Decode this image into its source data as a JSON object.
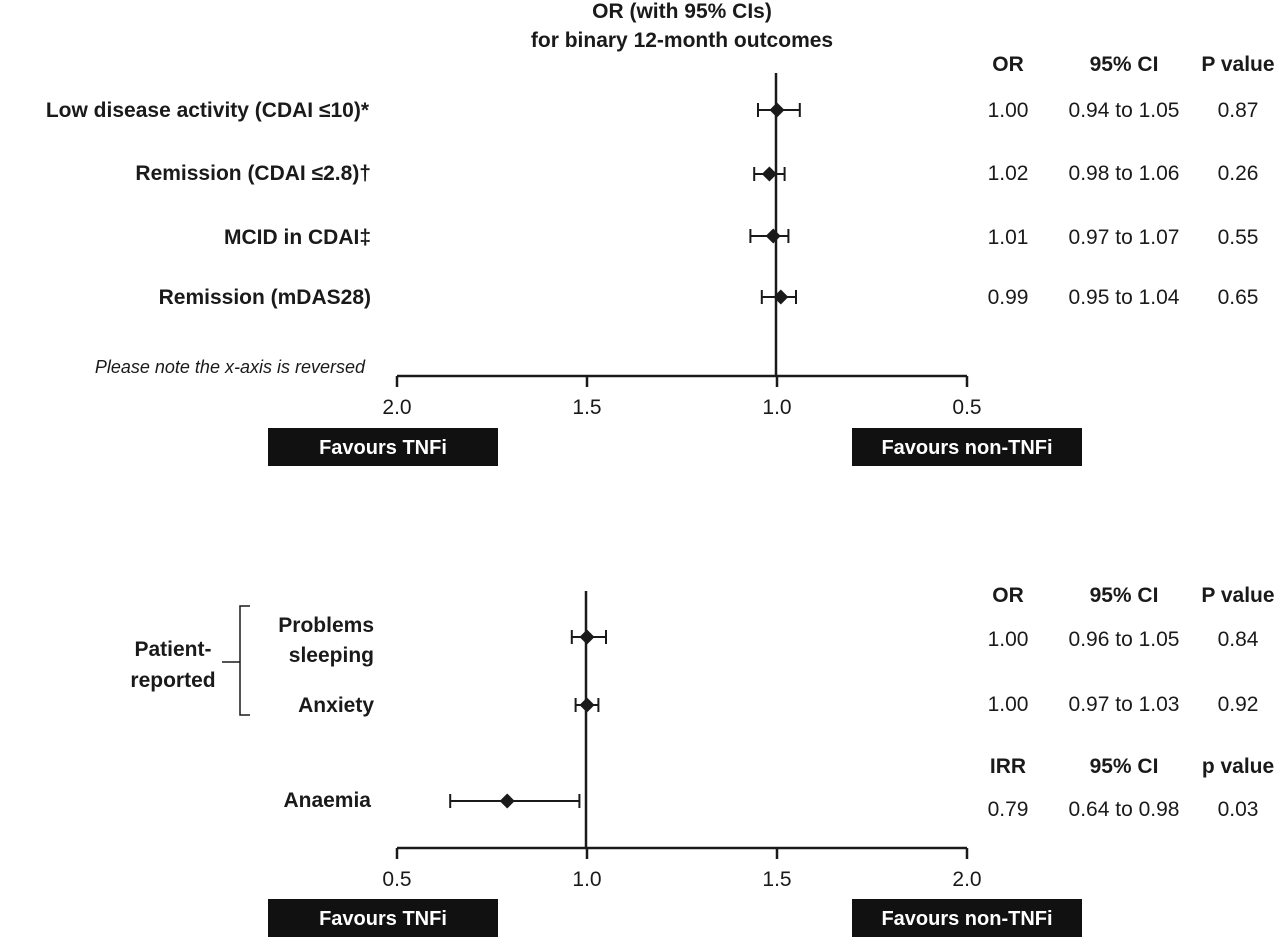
{
  "title_line1": "OR (with 95% CIs)",
  "title_line2": "for binary 12-month outcomes",
  "note": "Please note the x-axis is reversed",
  "chart_data": [
    {
      "type": "forest",
      "x_reversed": true,
      "xlim": [
        0.5,
        2.0
      ],
      "xticks": [
        "2.0",
        "1.5",
        "1.0",
        "0.5"
      ],
      "headers": [
        "OR",
        "95% CI",
        "P value"
      ],
      "rows": [
        {
          "label": "Low disease activity (CDAI ≤10)*",
          "est": 1.0,
          "lo": 0.94,
          "hi": 1.05,
          "est_text": "1.00",
          "ci_text": "0.94 to 1.05",
          "p_text": "0.87"
        },
        {
          "label": "Remission (CDAI ≤2.8)†",
          "est": 1.02,
          "lo": 0.98,
          "hi": 1.06,
          "est_text": "1.02",
          "ci_text": "0.98 to 1.06",
          "p_text": "0.26"
        },
        {
          "label": "MCID in CDAI‡",
          "est": 1.01,
          "lo": 0.97,
          "hi": 1.07,
          "est_text": "1.01",
          "ci_text": "0.97 to 1.07",
          "p_text": "0.55"
        },
        {
          "label": "Remission (mDAS28)",
          "est": 0.99,
          "lo": 0.95,
          "hi": 1.04,
          "est_text": "0.99",
          "ci_text": "0.95 to 1.04",
          "p_text": "0.65"
        }
      ],
      "favours_left": "Favours TNFi",
      "favours_right": "Favours non-TNFi"
    },
    {
      "type": "forest",
      "x_reversed": false,
      "xlim": [
        0.5,
        2.0
      ],
      "xticks": [
        "0.5",
        "1.0",
        "1.5",
        "2.0"
      ],
      "group_label": [
        "Patient-",
        "reported"
      ],
      "headers": [
        "OR",
        "95% CI",
        "P value"
      ],
      "headers2": [
        "IRR",
        "95% CI",
        "p value"
      ],
      "rows": [
        {
          "label": [
            "Problems",
            "sleeping"
          ],
          "est": 1.0,
          "lo": 0.96,
          "hi": 1.05,
          "est_text": "1.00",
          "ci_text": "0.96 to 1.05",
          "p_text": "0.84"
        },
        {
          "label": [
            "Anxiety"
          ],
          "est": 1.0,
          "lo": 0.97,
          "hi": 1.03,
          "est_text": "1.00",
          "ci_text": "0.97 to 1.03",
          "p_text": "0.92"
        },
        {
          "label": [
            "Anaemia"
          ],
          "est": 0.79,
          "lo": 0.64,
          "hi": 0.98,
          "est_text": "0.79",
          "ci_text": "0.64 to 0.98",
          "p_text": "0.03"
        }
      ],
      "favours_left": "Favours TNFi",
      "favours_right": "Favours non-TNFi"
    }
  ]
}
